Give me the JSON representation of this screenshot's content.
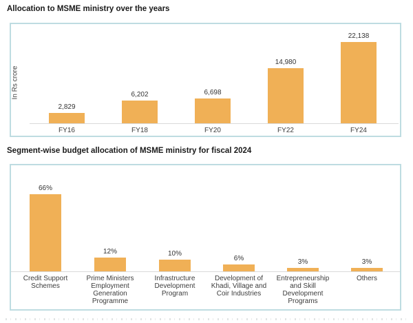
{
  "page": {
    "section1_title": "Allocation to MSME ministry over the years",
    "section2_title": "Segment-wise budget allocation of MSME ministry for fiscal 2024"
  },
  "colors": {
    "bar": "#f0b056",
    "chart_border": "#bedce1",
    "axis_line": "#d9d9d9",
    "title_text": "#1a1a1a",
    "label_text": "#3c3c3c"
  },
  "chart_data": [
    {
      "type": "bar",
      "title": "Allocation to MSME ministry over the years",
      "xlabel": "",
      "ylabel": "In Rs crore",
      "categories": [
        "FY16",
        "FY18",
        "FY20",
        "FY22",
        "FY24"
      ],
      "values": [
        2829,
        6202,
        6698,
        14980,
        22138
      ],
      "value_labels": [
        "2,829",
        "6,202",
        "6,698",
        "14,980",
        "22,138"
      ],
      "bar_color": "#f0b056",
      "ylim": [
        0,
        24000
      ],
      "grid": false,
      "legend": "none"
    },
    {
      "type": "bar",
      "title": "Segment-wise budget allocation of MSME ministry for fiscal 2024",
      "xlabel": "",
      "ylabel": "",
      "categories": [
        "Credit Support Schemes",
        "Prime Ministers Employment Generation Programme",
        "Infrastructure Development Program",
        "Development of Khadi, Village and Coir Industries",
        "Entrepreneurship and Skill Development Programs",
        "Others"
      ],
      "values": [
        66,
        12,
        10,
        6,
        3,
        3
      ],
      "value_labels": [
        "66%",
        "12%",
        "10%",
        "6%",
        "3%",
        "3%"
      ],
      "unit": "percent",
      "bar_color": "#f0b056",
      "ylim": [
        0,
        70
      ],
      "grid": false,
      "legend": "none"
    }
  ]
}
